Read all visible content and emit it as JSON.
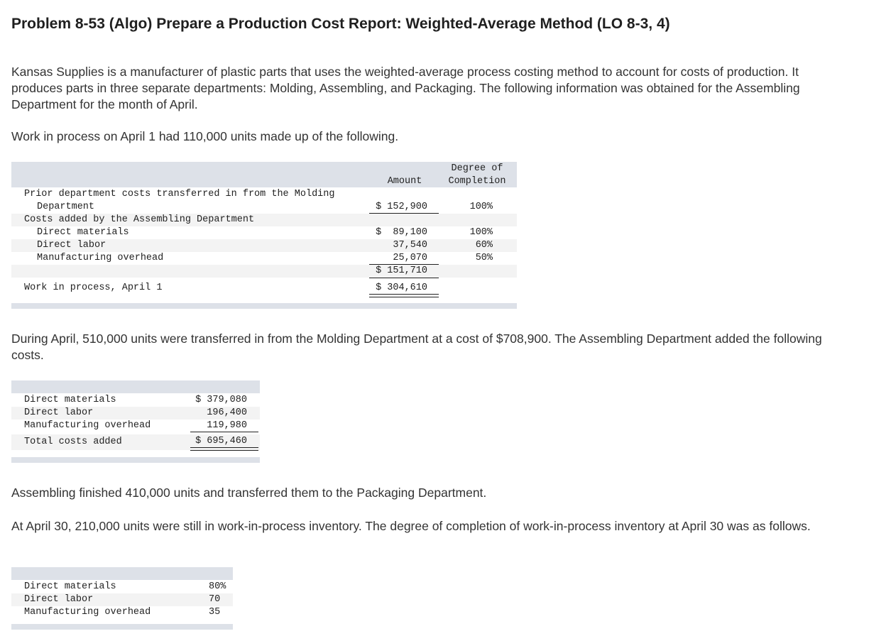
{
  "title": "Problem 8-53 (Algo) Prepare a Production Cost Report: Weighted-Average Method (LO 8-3, 4)",
  "intro": "Kansas Supplies is a manufacturer of plastic parts that uses the weighted-average process costing method to account for costs of production. It produces parts in three separate departments: Molding, Assembling, and Packaging. The following information was obtained for the Assembling Department for the month of April.",
  "wip_intro": "Work in process on April 1 had 110,000 units made up of the following.",
  "table1": {
    "header_amount": "Amount",
    "header_degree_1": "Degree of",
    "header_degree_2": "Completion",
    "prior_label_1": "Prior department costs transferred in from the Molding",
    "prior_label_2": "Department",
    "prior_amount": "$ 152,900",
    "prior_degree": "100%",
    "costs_added_label": "Costs added by the Assembling Department",
    "dm_label": "Direct materials",
    "dm_amount": "$  89,100",
    "dm_degree": "100%",
    "dl_label": "Direct labor",
    "dl_amount": "37,540",
    "dl_degree": "60%",
    "moh_label": "Manufacturing overhead",
    "moh_amount": "25,070",
    "moh_degree": "50%",
    "subtotal": "$ 151,710",
    "wip_label": "Work in process, April 1",
    "wip_total": "$ 304,610"
  },
  "april_text": "During April, 510,000 units were transferred in from the Molding Department at a cost of $708,900. The Assembling Department added the following costs.",
  "table2": {
    "dm_label": "Direct materials",
    "dm_amount": "$ 379,080",
    "dl_label": "Direct labor",
    "dl_amount": "196,400",
    "moh_label": "Manufacturing overhead",
    "moh_amount": "119,980",
    "total_label": "Total costs added",
    "total_amount": "$ 695,460"
  },
  "finished_text": "Assembling finished 410,000 units and transferred them to the Packaging Department.",
  "april30_text": "At April 30, 210,000 units were still in work-in-process inventory. The degree of completion of work-in-process inventory at April 30 was as follows.",
  "table3": {
    "dm_label": "Direct materials",
    "dm_pct": "80%",
    "dl_label": "Direct labor",
    "dl_pct": "70",
    "moh_label": "Manufacturing overhead",
    "moh_pct": "35"
  }
}
